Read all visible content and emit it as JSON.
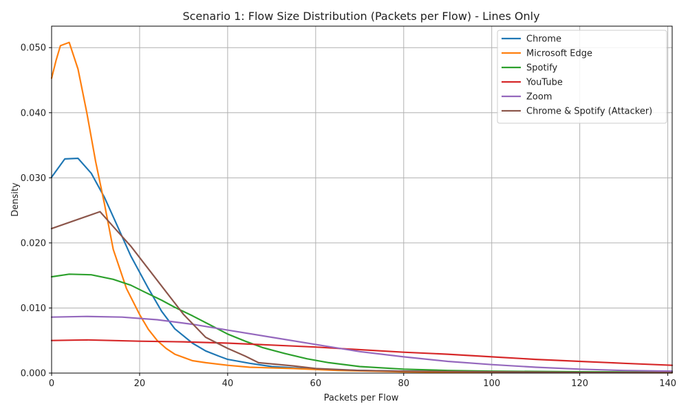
{
  "chart_data": {
    "type": "line",
    "title": "Scenario 1: Flow Size Distribution (Packets per Flow) - Lines Only",
    "xlabel": "Packets per Flow",
    "ylabel": "Density",
    "xlim": [
      0,
      141
    ],
    "ylim": [
      0,
      0.0533
    ],
    "xticks": [
      0,
      20,
      40,
      60,
      80,
      100,
      120,
      140
    ],
    "yticks": [
      0.0,
      0.01,
      0.02,
      0.03,
      0.04,
      0.05
    ],
    "xtick_labels": [
      "0",
      "20",
      "40",
      "60",
      "80",
      "100",
      "120",
      "140"
    ],
    "ytick_labels": [
      "0.000",
      "0.010",
      "0.020",
      "0.030",
      "0.040",
      "0.050"
    ],
    "grid": true,
    "legend_position": "top-right",
    "series": [
      {
        "name": "Chrome",
        "color": "#1f77b4",
        "points": [
          [
            0,
            0.0301
          ],
          [
            3,
            0.0329
          ],
          [
            6,
            0.033
          ],
          [
            9,
            0.0307
          ],
          [
            12,
            0.027
          ],
          [
            15,
            0.0225
          ],
          [
            18,
            0.018
          ],
          [
            22,
            0.013
          ],
          [
            25,
            0.0095
          ],
          [
            28,
            0.0068
          ],
          [
            32,
            0.0046
          ],
          [
            35,
            0.0034
          ],
          [
            38,
            0.0026
          ],
          [
            40,
            0.0021
          ],
          [
            45,
            0.0015
          ],
          [
            50,
            0.001
          ],
          [
            60,
            0.0006
          ],
          [
            70,
            0.0004
          ],
          [
            80,
            0.0003
          ],
          [
            100,
            0.0002
          ],
          [
            120,
            0.00015
          ],
          [
            141,
            0.0001
          ]
        ]
      },
      {
        "name": "Microsoft Edge",
        "color": "#ff7f0e",
        "points": [
          [
            0,
            0.0453
          ],
          [
            1,
            0.048
          ],
          [
            2,
            0.0503
          ],
          [
            4,
            0.0508
          ],
          [
            6,
            0.0467
          ],
          [
            8,
            0.04
          ],
          [
            10,
            0.0325
          ],
          [
            12,
            0.026
          ],
          [
            14,
            0.019
          ],
          [
            17,
            0.013
          ],
          [
            20,
            0.009
          ],
          [
            22,
            0.0067
          ],
          [
            24,
            0.005
          ],
          [
            26,
            0.0038
          ],
          [
            28,
            0.0029
          ],
          [
            30,
            0.0024
          ],
          [
            32,
            0.0019
          ],
          [
            35,
            0.0016
          ],
          [
            40,
            0.0012
          ],
          [
            45,
            0.0009
          ],
          [
            55,
            0.0007
          ],
          [
            65,
            0.0004
          ],
          [
            80,
            0.0002
          ],
          [
            100,
            0.0001
          ],
          [
            141,
            5e-05
          ]
        ]
      },
      {
        "name": "Spotify",
        "color": "#2ca02c",
        "points": [
          [
            0,
            0.0148
          ],
          [
            4,
            0.0152
          ],
          [
            9,
            0.0151
          ],
          [
            14,
            0.0144
          ],
          [
            18,
            0.0135
          ],
          [
            21,
            0.0125
          ],
          [
            25,
            0.0112
          ],
          [
            28,
            0.0101
          ],
          [
            32,
            0.0088
          ],
          [
            36,
            0.0074
          ],
          [
            40,
            0.006
          ],
          [
            44,
            0.0049
          ],
          [
            48,
            0.0039
          ],
          [
            53,
            0.003
          ],
          [
            58,
            0.0022
          ],
          [
            63,
            0.0016
          ],
          [
            70,
            0.001
          ],
          [
            80,
            0.0006
          ],
          [
            90,
            0.0004
          ],
          [
            100,
            0.0003
          ],
          [
            120,
            0.0002
          ],
          [
            141,
            0.00015
          ]
        ]
      },
      {
        "name": "YouTube",
        "color": "#d62728",
        "points": [
          [
            0,
            0.005
          ],
          [
            8,
            0.0051
          ],
          [
            20,
            0.0049
          ],
          [
            30,
            0.0048
          ],
          [
            40,
            0.0046
          ],
          [
            50,
            0.0043
          ],
          [
            60,
            0.004
          ],
          [
            70,
            0.0036
          ],
          [
            80,
            0.0032
          ],
          [
            90,
            0.0029
          ],
          [
            100,
            0.0025
          ],
          [
            110,
            0.0021
          ],
          [
            120,
            0.0018
          ],
          [
            130,
            0.0015
          ],
          [
            141,
            0.0012
          ]
        ]
      },
      {
        "name": "Zoom",
        "color": "#9467bd",
        "points": [
          [
            0,
            0.0086
          ],
          [
            8,
            0.0087
          ],
          [
            16,
            0.0086
          ],
          [
            24,
            0.0082
          ],
          [
            32,
            0.0075
          ],
          [
            40,
            0.0066
          ],
          [
            50,
            0.0055
          ],
          [
            60,
            0.0044
          ],
          [
            70,
            0.0033
          ],
          [
            80,
            0.0025
          ],
          [
            90,
            0.0018
          ],
          [
            100,
            0.0013
          ],
          [
            110,
            0.0009
          ],
          [
            120,
            0.0006
          ],
          [
            130,
            0.0004
          ],
          [
            141,
            0.0003
          ]
        ]
      },
      {
        "name": "Chrome & Spotify (Attacker)",
        "color": "#8c564b",
        "points": [
          [
            0,
            0.0222
          ],
          [
            11,
            0.0248
          ],
          [
            14,
            0.0225
          ],
          [
            18,
            0.0195
          ],
          [
            22,
            0.016
          ],
          [
            26,
            0.0125
          ],
          [
            30,
            0.009
          ],
          [
            35,
            0.0055
          ],
          [
            40,
            0.0038
          ],
          [
            44,
            0.0026
          ],
          [
            47,
            0.0016
          ],
          [
            55,
            0.0011
          ],
          [
            60,
            0.0007
          ],
          [
            70,
            0.0004
          ],
          [
            80,
            0.0003
          ],
          [
            100,
            0.0002
          ],
          [
            120,
            0.0001
          ],
          [
            141,
            0.0001
          ]
        ]
      }
    ]
  }
}
